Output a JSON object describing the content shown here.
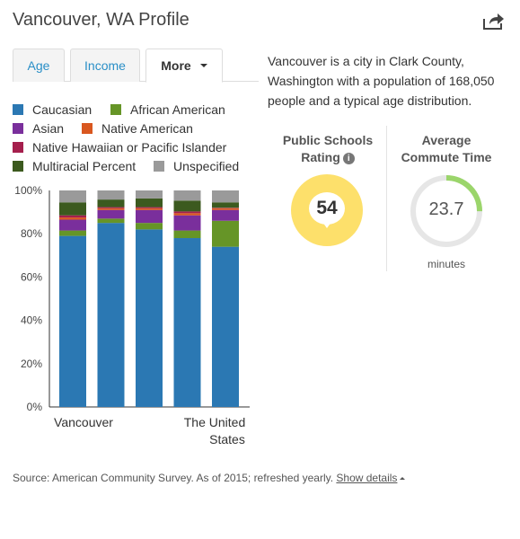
{
  "header": {
    "title": "Vancouver, WA Profile",
    "share_icon": "share-icon"
  },
  "tabs": [
    {
      "label": "Age"
    },
    {
      "label": "Income"
    },
    {
      "label": "More"
    }
  ],
  "legend": [
    {
      "label": "Caucasian",
      "color": "#2b78b3"
    },
    {
      "label": "African American",
      "color": "#669527"
    },
    {
      "label": "Asian",
      "color": "#7a2f9c"
    },
    {
      "label": "Native American",
      "color": "#d9571f"
    },
    {
      "label": "Native Hawaiian or Pacific Islander",
      "color": "#a51f4d"
    },
    {
      "label": "Multiracial Percent",
      "color": "#3c5a1f"
    },
    {
      "label": "Unspecified",
      "color": "#9a9a9a"
    }
  ],
  "chart_data": {
    "type": "bar",
    "stacked": true,
    "ylim": [
      0,
      100
    ],
    "yticks": [
      "0%",
      "20%",
      "40%",
      "60%",
      "80%",
      "100%"
    ],
    "xtick_labels": [
      "Vancouver",
      "The United States"
    ],
    "series": [
      {
        "name": "Caucasian",
        "values": [
          79,
          85,
          82,
          78,
          74
        ]
      },
      {
        "name": "African American",
        "values": [
          2.5,
          2,
          3,
          3.5,
          12
        ]
      },
      {
        "name": "Asian",
        "values": [
          5,
          4,
          6,
          7,
          5
        ]
      },
      {
        "name": "Native American",
        "values": [
          1,
          0.8,
          0.8,
          1,
          0.8
        ]
      },
      {
        "name": "Native Hawaiian or Pacific Islander",
        "values": [
          1,
          0.5,
          0.5,
          0.8,
          0.2
        ]
      },
      {
        "name": "Multiracial Percent",
        "values": [
          6,
          3.5,
          4,
          5,
          2.5
        ]
      },
      {
        "name": "Unspecified",
        "values": [
          5.5,
          4.2,
          3.7,
          4.7,
          5.5
        ]
      }
    ]
  },
  "description": "Vancouver is a city in Clark County, Washington with a population of 168,050 people and a typical age distribution.",
  "schools": {
    "title_line1": "Public Schools",
    "title_line2": "Rating",
    "info_icon": "i",
    "value": "54",
    "color": "#fde06b"
  },
  "commute": {
    "title_line1": "Average",
    "title_line2": "Commute Time",
    "value": "23.7",
    "unit": "minutes",
    "progress": 0.25,
    "color": "#9bd56b"
  },
  "footer": {
    "source": "Source: American Community Survey. As of 2015; refreshed yearly.",
    "link": "Show details"
  }
}
